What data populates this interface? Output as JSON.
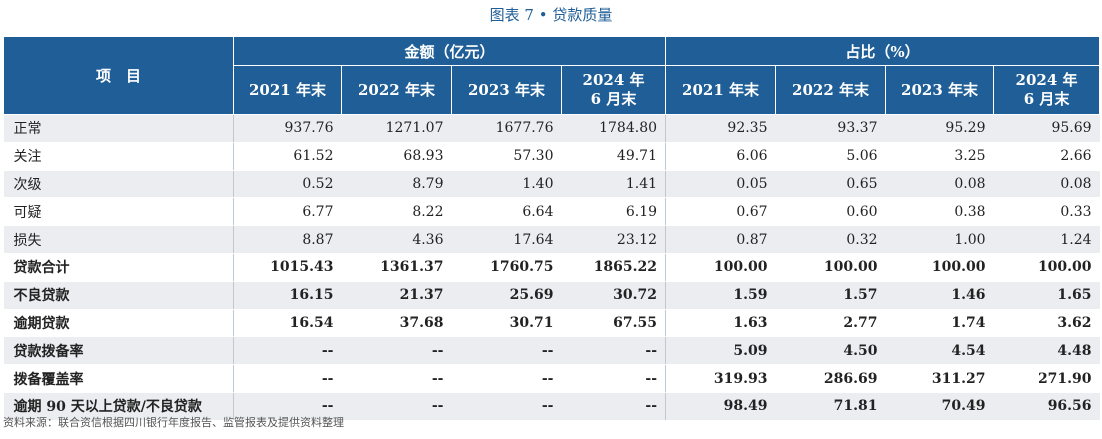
{
  "title": "图表 7 • 贷款质量",
  "header": {
    "item_label": "项　目",
    "group_amount": "金额（亿元）",
    "group_ratio": "占比（%）",
    "years_amount": [
      "2021 年末",
      "2022 年末",
      "2023 年末",
      "2024 年\n6 月末"
    ],
    "years_ratio": [
      "2021 年末",
      "2022 年末",
      "2023 年末",
      "2024 年\n6 月末"
    ]
  },
  "rows": [
    {
      "label": "正常",
      "bold": false,
      "values": [
        "937.76",
        "1271.07",
        "1677.76",
        "1784.80",
        "92.35",
        "93.37",
        "95.29",
        "95.69"
      ]
    },
    {
      "label": "关注",
      "bold": false,
      "values": [
        "61.52",
        "68.93",
        "57.30",
        "49.71",
        "6.06",
        "5.06",
        "3.25",
        "2.66"
      ]
    },
    {
      "label": "次级",
      "bold": false,
      "values": [
        "0.52",
        "8.79",
        "1.40",
        "1.41",
        "0.05",
        "0.65",
        "0.08",
        "0.08"
      ]
    },
    {
      "label": "可疑",
      "bold": false,
      "values": [
        "6.77",
        "8.22",
        "6.64",
        "6.19",
        "0.67",
        "0.60",
        "0.38",
        "0.33"
      ]
    },
    {
      "label": "损失",
      "bold": false,
      "values": [
        "8.87",
        "4.36",
        "17.64",
        "23.12",
        "0.87",
        "0.32",
        "1.00",
        "1.24"
      ]
    },
    {
      "label": "贷款合计",
      "bold": true,
      "values": [
        "1015.43",
        "1361.37",
        "1760.75",
        "1865.22",
        "100.00",
        "100.00",
        "100.00",
        "100.00"
      ]
    },
    {
      "label": "不良贷款",
      "bold": true,
      "values": [
        "16.15",
        "21.37",
        "25.69",
        "30.72",
        "1.59",
        "1.57",
        "1.46",
        "1.65"
      ]
    },
    {
      "label": "逾期贷款",
      "bold": true,
      "values": [
        "16.54",
        "37.68",
        "30.71",
        "67.55",
        "1.63",
        "2.77",
        "1.74",
        "3.62"
      ]
    },
    {
      "label": "贷款拨备率",
      "bold": true,
      "values": [
        "--",
        "--",
        "--",
        "--",
        "5.09",
        "4.50",
        "4.54",
        "4.48"
      ]
    },
    {
      "label": "拨备覆盖率",
      "bold": true,
      "values": [
        "--",
        "--",
        "--",
        "--",
        "319.93",
        "286.69",
        "311.27",
        "271.90"
      ]
    },
    {
      "label": "逾期 90 天以上贷款/不良贷款",
      "bold": true,
      "values": [
        "--",
        "--",
        "--",
        "--",
        "98.49",
        "71.81",
        "70.49",
        "96.56"
      ]
    }
  ],
  "source": "资料来源：联合资信根据四川银行年度报告、监管报表及提供资料整理",
  "colors": {
    "header_bg": "#1f5e96",
    "row_alt": "#ebedf1",
    "title": "#1f5e96"
  }
}
